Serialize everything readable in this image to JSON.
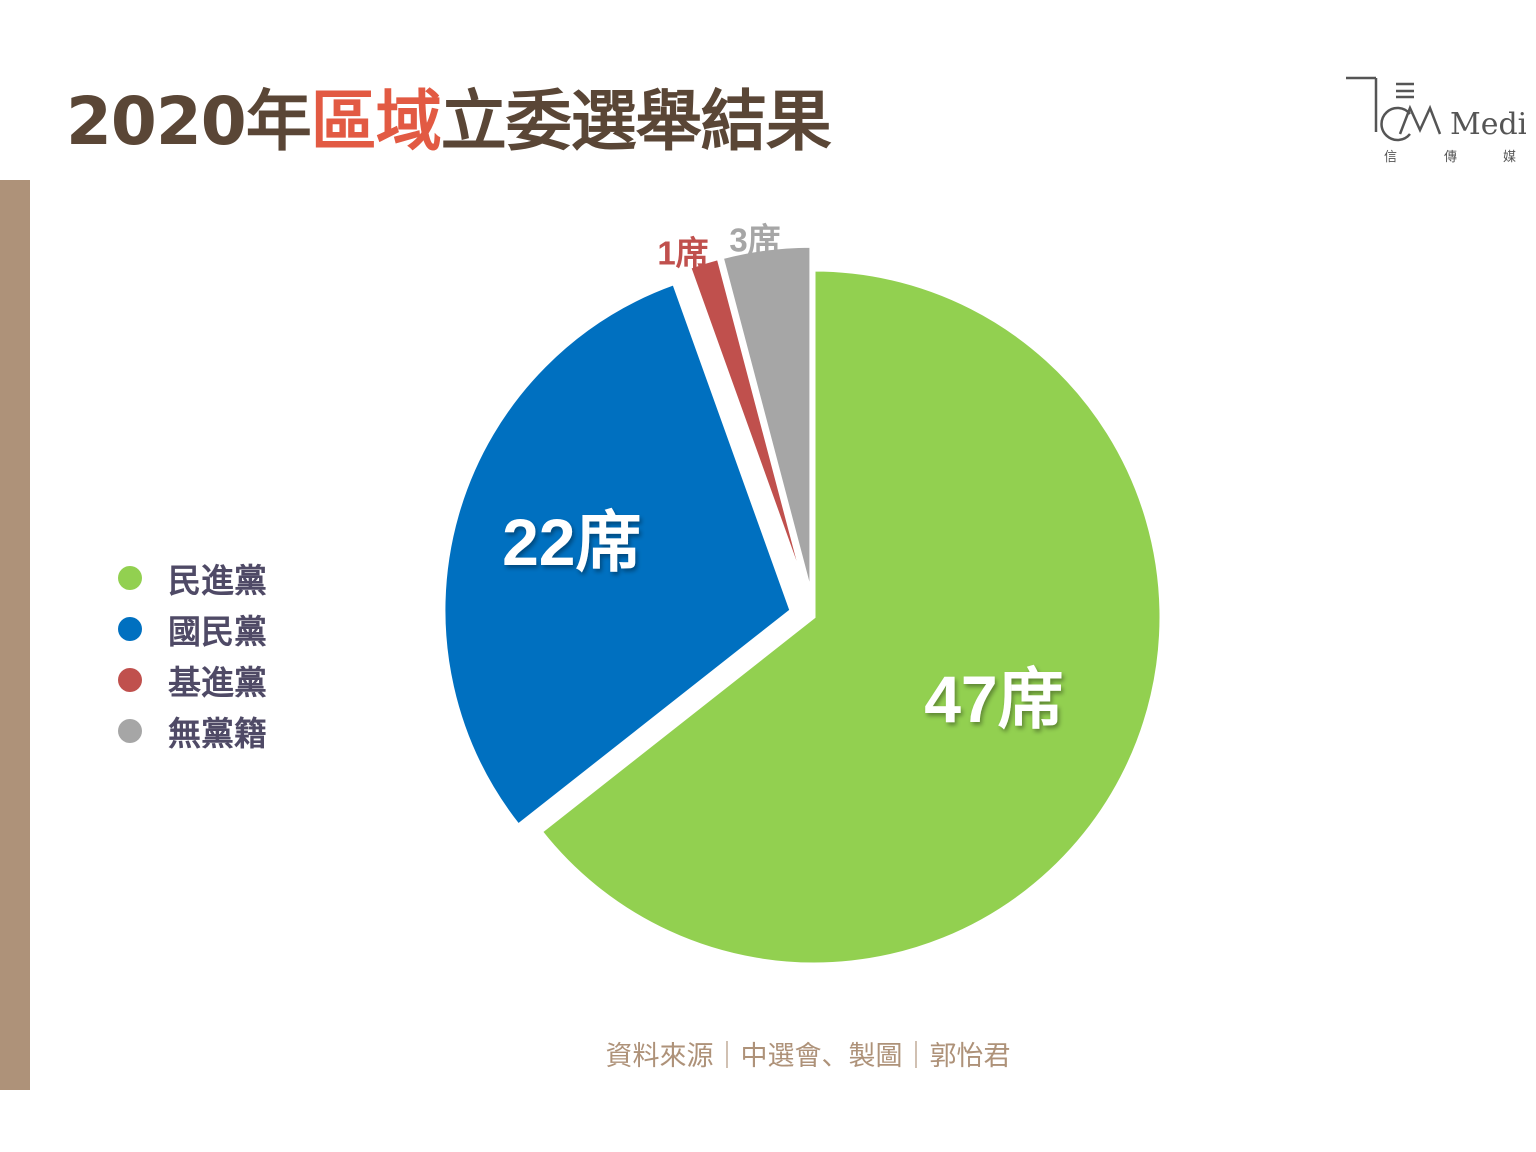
{
  "title": {
    "prefix": "2020年",
    "highlight": "區域",
    "suffix": "立委選舉結果"
  },
  "logo": {
    "brand": "Media",
    "chinese": [
      "信",
      "傳",
      "媒"
    ]
  },
  "legend": [
    {
      "label": "民進黨",
      "color": "#92d050"
    },
    {
      "label": "國民黨",
      "color": "#0070c0"
    },
    {
      "label": "基進黨",
      "color": "#c0504d"
    },
    {
      "label": "無黨籍",
      "color": "#a6a6a6"
    }
  ],
  "chart_data": {
    "type": "pie",
    "series": [
      {
        "categories": [
          "民進黨",
          "國民黨",
          "基進黨",
          "無黨籍"
        ],
        "values": [
          47,
          22,
          1,
          3
        ]
      }
    ],
    "data_labels": [
      "47席",
      "22席",
      "1席",
      "3席"
    ],
    "colors": [
      "#92d050",
      "#0070c0",
      "#c0504d",
      "#a6a6a6"
    ],
    "legend_position": "left",
    "exploded": true
  },
  "source": "資料來源｜中選會、製圖｜郭怡君"
}
